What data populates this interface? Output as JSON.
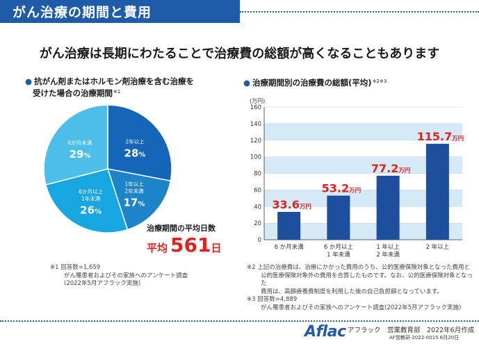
{
  "header": {
    "title": "がん治療の期間と費用"
  },
  "headline": "がん治療は長期にわたることで治療費の総額が高くなることもあります",
  "left_panel": {
    "title_line1": "抗がん剤またはホルモン剤治療を含む治療を",
    "title_line2": "受けた場合の治療期間",
    "title_note": "※1",
    "average_label": "治療期間の平均日数",
    "average_prefix": "平均",
    "average_value": "561",
    "average_unit": "日"
  },
  "right_panel": {
    "title": "治療期間別の治療費の総額(平均)",
    "title_note": "※2※3"
  },
  "chart_data": [
    {
      "type": "pie",
      "slices": [
        {
          "label_lines": [
            "2年以上"
          ],
          "value": 28,
          "value_text": "28",
          "unit": "%",
          "color": "#1565b8"
        },
        {
          "label_lines": [
            "1年以上",
            "2年未満"
          ],
          "value": 17,
          "value_text": "17",
          "unit": "%",
          "color": "#1d84c9"
        },
        {
          "label_lines": [
            "6か月以上",
            "1年未満"
          ],
          "value": 26,
          "value_text": "26",
          "unit": "%",
          "color": "#18a6e0"
        },
        {
          "label_lines": [
            "6か月未満"
          ],
          "value": 29,
          "value_text": "29",
          "unit": "%",
          "color": "#4dbdea"
        }
      ]
    },
    {
      "type": "bar",
      "ylabel": "(万円)",
      "ylim": [
        0,
        160
      ],
      "yticks": [
        "0",
        "20",
        "40",
        "60",
        "80",
        "100",
        "120",
        "140",
        "160"
      ],
      "categories": [
        [
          "6 か月未満"
        ],
        [
          "6 か月以上",
          "1 年未満"
        ],
        [
          "1 年以上",
          "2 年未満"
        ],
        [
          "2 年以上"
        ]
      ],
      "values": [
        33.6,
        53.2,
        77.2,
        115.7
      ],
      "value_labels": [
        "33.6",
        "53.2",
        "77.2",
        "115.7"
      ],
      "unit": "万円",
      "bar_color": "#1e4f9c",
      "label_color": "#e1221d",
      "band_color": "#d5e9f7"
    }
  ],
  "notes": {
    "note1_line1": "※1 回答数=1,659",
    "note1_line2": "がん罹患者およびその家族へのアンケート調査",
    "note1_line3": "(2022年5月アフラック実施)",
    "note2_line1": "※2 上記の治療費は、治療にかかった費用のうち、公的医療保険対象となった費用と",
    "note2_line2": "公的医療保険対象外の費用を合算したものです。なお、公的医療保険対象となった",
    "note2_line3": "費用は、高額療養費制度を利用した後の自己負担額となっています。",
    "note3_line1": "※3 回答数=4,889",
    "note3_line2": "がん罹患者およびその家族へのアンケート調査(2022年5月アフラック実施)"
  },
  "footer": {
    "logo": "Aflac",
    "text": "アフラック　営業教育部　2022年6月作成",
    "code": "AF営教研-2022-0015 6月20日"
  }
}
